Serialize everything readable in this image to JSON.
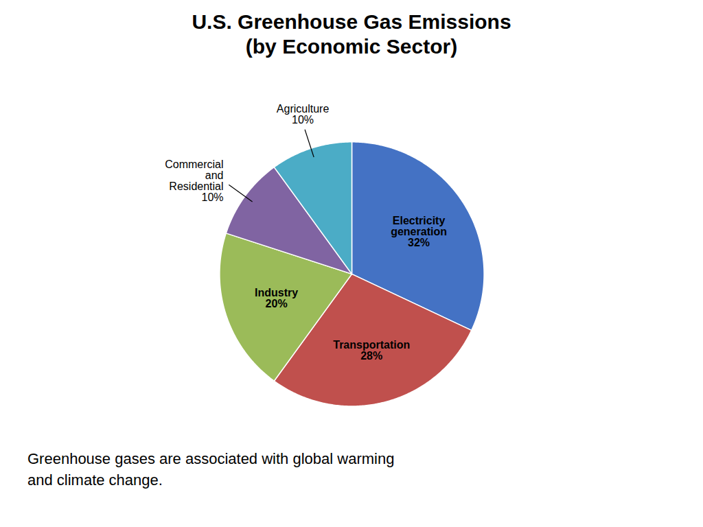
{
  "chart_data": {
    "type": "pie",
    "title": "U.S. Greenhouse Gas Emissions\n(by Economic Sector)",
    "subtitle": "Greenhouse gases are associated with global warming\nand climate change.",
    "categories": [
      "Electricity\ngeneration",
      "Transportation",
      "Industry",
      "Commercial\nand\nResidential",
      "Agriculture"
    ],
    "values": [
      32,
      28,
      20,
      10,
      10
    ],
    "value_labels": [
      "32%",
      "28%",
      "20%",
      "10%",
      "10%"
    ],
    "colors": [
      "#4472C4",
      "#C0504D",
      "#9BBB59",
      "#8064A2",
      "#4BACC6"
    ],
    "data_labels": true
  }
}
